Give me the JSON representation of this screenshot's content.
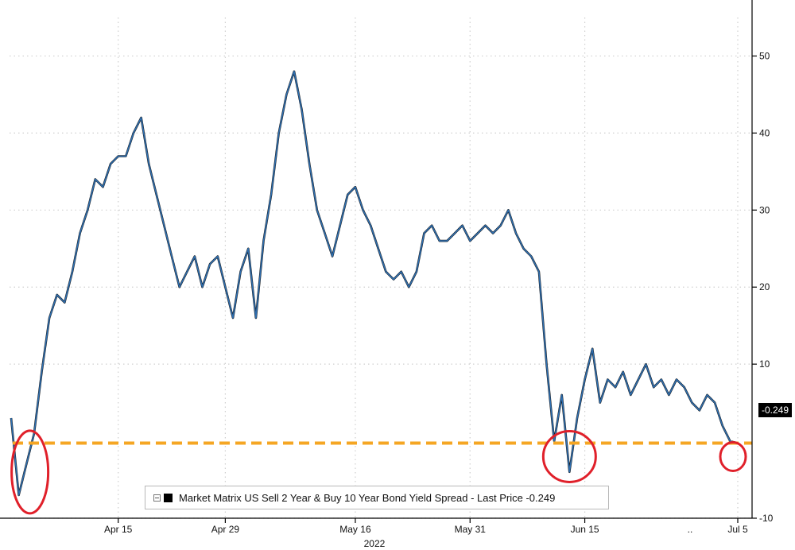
{
  "chart_data": {
    "type": "line",
    "title": "",
    "xlabel": "2022",
    "ylabel": "",
    "ylim": [
      -10,
      55
    ],
    "y_ticks": [
      "50",
      "40",
      "30",
      "20",
      "10",
      "-10"
    ],
    "x_ticks": [
      "Apr 15",
      "Apr 29",
      "May 16",
      "May 31",
      "Jun 15",
      "Jul 5"
    ],
    "x_ellipsis": "..",
    "year_label": "2022",
    "grid": true,
    "legend_position": "bottom",
    "series": [
      {
        "name": "Market Matrix US Sell 2 Year & Buy 10 Year Bond Yield Spread - Last Price -0.249",
        "points": [
          [
            "Apr 1",
            3
          ],
          [
            "Apr 2",
            -7
          ],
          [
            "Apr 3",
            -3
          ],
          [
            "Apr 4",
            1
          ],
          [
            "Apr 5",
            9
          ],
          [
            "Apr 6",
            16
          ],
          [
            "Apr 7",
            19
          ],
          [
            "Apr 8",
            18
          ],
          [
            "Apr 9",
            22
          ],
          [
            "Apr 10",
            27
          ],
          [
            "Apr 11",
            30
          ],
          [
            "Apr 12",
            34
          ],
          [
            "Apr 13",
            33
          ],
          [
            "Apr 14",
            36
          ],
          [
            "Apr 15",
            37
          ],
          [
            "Apr 16",
            37
          ],
          [
            "Apr 17",
            40
          ],
          [
            "Apr 18",
            42
          ],
          [
            "Apr 19",
            36
          ],
          [
            "Apr 20",
            32
          ],
          [
            "Apr 21",
            28
          ],
          [
            "Apr 22",
            24
          ],
          [
            "Apr 23",
            20
          ],
          [
            "Apr 24",
            22
          ],
          [
            "Apr 25",
            24
          ],
          [
            "Apr 26",
            20
          ],
          [
            "Apr 27",
            23
          ],
          [
            "Apr 28",
            24
          ],
          [
            "Apr 29",
            20
          ],
          [
            "Apr 30",
            16
          ],
          [
            "May 1",
            22
          ],
          [
            "May 2",
            25
          ],
          [
            "May 3",
            16
          ],
          [
            "May 4",
            26
          ],
          [
            "May 5",
            32
          ],
          [
            "May 6",
            40
          ],
          [
            "May 7",
            45
          ],
          [
            "May 8",
            48
          ],
          [
            "May 9",
            43
          ],
          [
            "May 10",
            36
          ],
          [
            "May 11",
            30
          ],
          [
            "May 12",
            27
          ],
          [
            "May 13",
            24
          ],
          [
            "May 14",
            28
          ],
          [
            "May 15",
            32
          ],
          [
            "May 16",
            33
          ],
          [
            "May 17",
            30
          ],
          [
            "May 18",
            28
          ],
          [
            "May 19",
            25
          ],
          [
            "May 20",
            22
          ],
          [
            "May 21",
            21
          ],
          [
            "May 22",
            22
          ],
          [
            "May 23",
            20
          ],
          [
            "May 24",
            22
          ],
          [
            "May 25",
            27
          ],
          [
            "May 26",
            28
          ],
          [
            "May 27",
            26
          ],
          [
            "May 28",
            26
          ],
          [
            "May 29",
            27
          ],
          [
            "May 30",
            28
          ],
          [
            "May 31",
            26
          ],
          [
            "Jun 1",
            27
          ],
          [
            "Jun 2",
            28
          ],
          [
            "Jun 3",
            27
          ],
          [
            "Jun 4",
            28
          ],
          [
            "Jun 5",
            30
          ],
          [
            "Jun 6",
            27
          ],
          [
            "Jun 7",
            25
          ],
          [
            "Jun 8",
            24
          ],
          [
            "Jun 9",
            22
          ],
          [
            "Jun 10",
            10
          ],
          [
            "Jun 11",
            0
          ],
          [
            "Jun 12",
            6
          ],
          [
            "Jun 13",
            -4
          ],
          [
            "Jun 14",
            3
          ],
          [
            "Jun 15",
            8
          ],
          [
            "Jun 16",
            12
          ],
          [
            "Jun 17",
            5
          ],
          [
            "Jun 18",
            8
          ],
          [
            "Jun 19",
            7
          ],
          [
            "Jun 20",
            9
          ],
          [
            "Jun 21",
            6
          ],
          [
            "Jun 22",
            8
          ],
          [
            "Jun 23",
            10
          ],
          [
            "Jun 24",
            7
          ],
          [
            "Jun 25",
            8
          ],
          [
            "Jun 26",
            6
          ],
          [
            "Jun 27",
            8
          ],
          [
            "Jun 28",
            7
          ],
          [
            "Jun 29",
            5
          ],
          [
            "Jun 30",
            4
          ],
          [
            "Jul 1",
            6
          ],
          [
            "Jul 2",
            5
          ],
          [
            "Jul 3",
            2
          ],
          [
            "Jul 4",
            0
          ],
          [
            "Jul 5",
            -0.249
          ]
        ]
      }
    ],
    "reference_line": {
      "value": -0.249,
      "label": "-0.249",
      "color": "#f5a623"
    },
    "annotations": [
      {
        "type": "ellipse",
        "color": "#e0202a",
        "x": "Apr 2",
        "y": -4
      },
      {
        "type": "ellipse",
        "color": "#e0202a",
        "x": "Jun 13",
        "y": -2
      },
      {
        "type": "ellipse",
        "color": "#e0202a",
        "x": "Jul 5",
        "y": -2
      }
    ],
    "colors": {
      "line": "#2f6fb0",
      "grid": "#cfcfcf",
      "axis": "#000000",
      "highlight": "#f5a623"
    }
  },
  "legend": {
    "label": "Market Matrix US Sell 2 Year & Buy 10 Year Bond Yield Spread - Last Price -0.249"
  },
  "last_price_label": "-0.249"
}
